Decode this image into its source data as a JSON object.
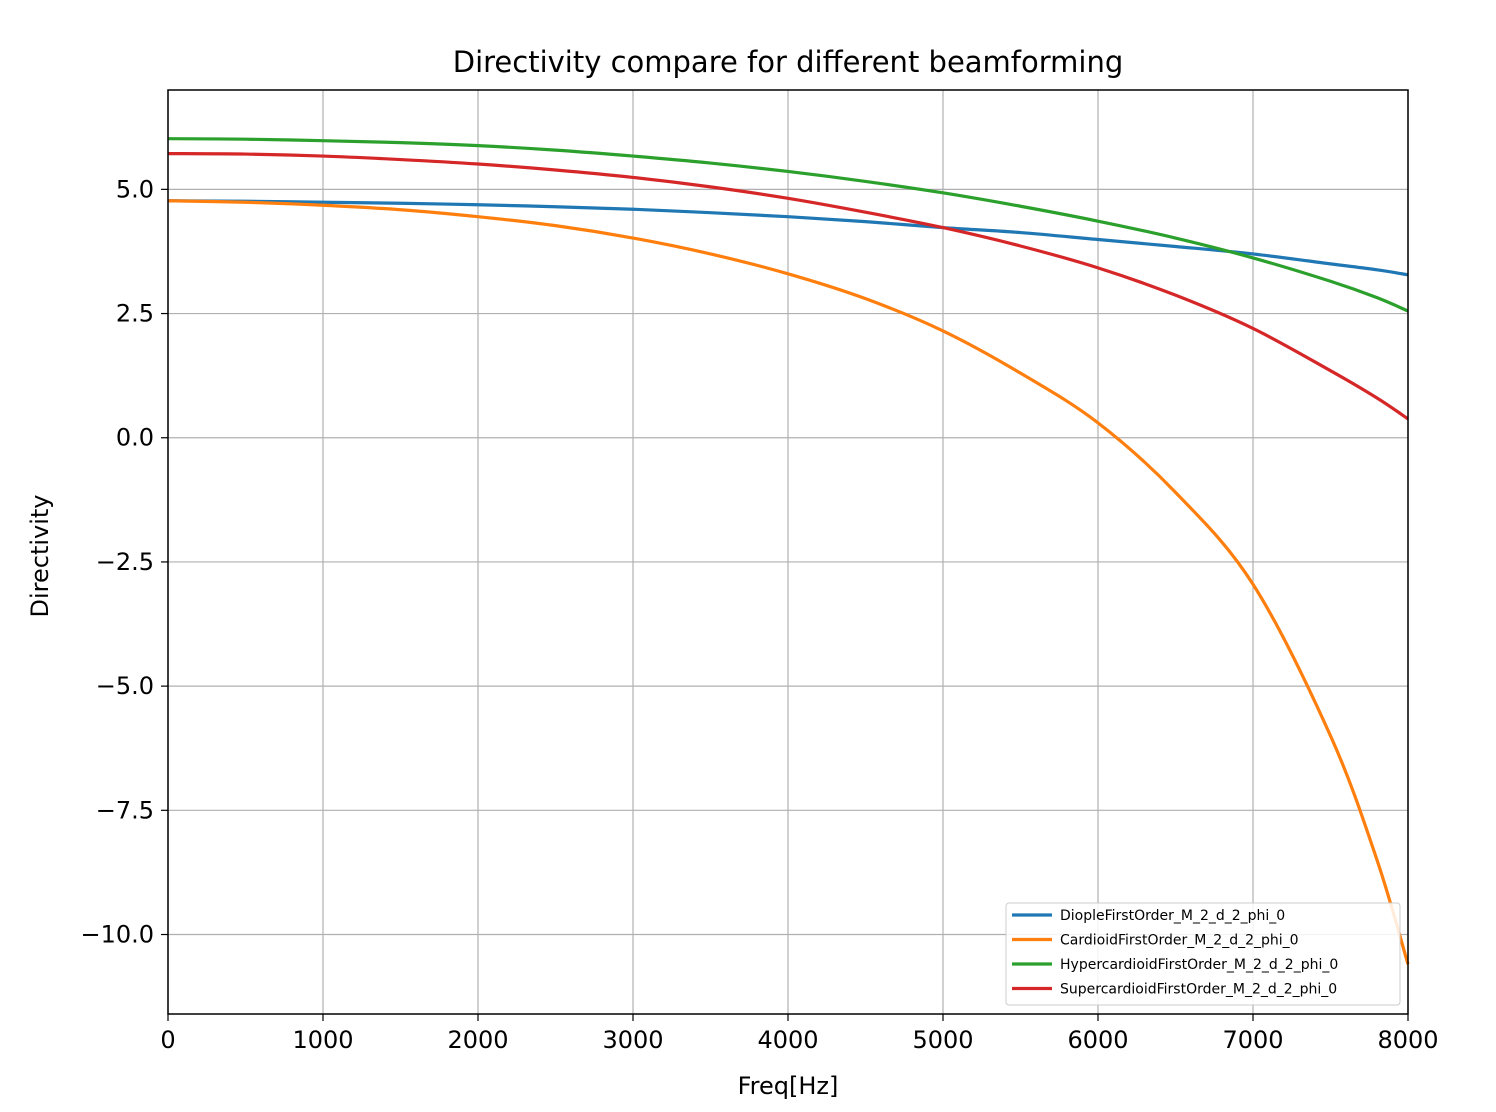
{
  "chart_data": {
    "type": "line",
    "title": "Directivity compare for different beamforming",
    "xlabel": "Freq[Hz]",
    "ylabel": "Directivity",
    "xlim": [
      0,
      8000
    ],
    "ylim": [
      -11.6,
      7.0
    ],
    "xticks": [
      0,
      1000,
      2000,
      3000,
      4000,
      5000,
      6000,
      7000,
      8000
    ],
    "xtick_labels": [
      "0",
      "1000",
      "2000",
      "3000",
      "4000",
      "5000",
      "6000",
      "7000",
      "8000"
    ],
    "yticks": [
      5.0,
      2.5,
      0.0,
      -2.5,
      -5.0,
      -7.5,
      -10.0
    ],
    "ytick_labels": [
      "5.0",
      "2.5",
      "0.0",
      "−2.5",
      "−5.0",
      "−7.5",
      "−10.0"
    ],
    "grid": true,
    "legend_position": "lower-right",
    "x": [
      0,
      500,
      1000,
      1500,
      2000,
      2500,
      3000,
      3500,
      4000,
      4500,
      5000,
      5500,
      6000,
      6500,
      7000,
      7500,
      7800,
      8000
    ],
    "series": [
      {
        "name": "DiopleFirstOrder_M_2_d_2_phi_0",
        "color": "#1f77b4",
        "values": [
          4.77,
          4.76,
          4.74,
          4.72,
          4.69,
          4.65,
          4.6,
          4.53,
          4.45,
          4.35,
          4.23,
          4.13,
          3.99,
          3.85,
          3.7,
          3.5,
          3.38,
          3.28
        ]
      },
      {
        "name": "CardioidFirstOrder_M_2_d_2_phi_0",
        "color": "#ff7f0e",
        "values": [
          4.77,
          4.74,
          4.68,
          4.59,
          4.45,
          4.27,
          4.02,
          3.7,
          3.3,
          2.8,
          2.15,
          1.3,
          0.3,
          -1.1,
          -2.95,
          -6.0,
          -8.5,
          -10.6
        ]
      },
      {
        "name": "HypercardioidFirstOrder_M_2_d_2_phi_0",
        "color": "#2ca02c",
        "values": [
          6.02,
          6.01,
          5.98,
          5.94,
          5.88,
          5.79,
          5.67,
          5.53,
          5.36,
          5.16,
          4.93,
          4.66,
          4.36,
          4.02,
          3.62,
          3.15,
          2.82,
          2.55
        ]
      },
      {
        "name": "SupercardioidFirstOrder_M_2_d_2_phi_0",
        "color": "#d62728",
        "values": [
          5.72,
          5.71,
          5.67,
          5.6,
          5.51,
          5.39,
          5.24,
          5.05,
          4.82,
          4.54,
          4.23,
          3.86,
          3.42,
          2.87,
          2.2,
          1.35,
          0.8,
          0.38
        ]
      }
    ]
  }
}
